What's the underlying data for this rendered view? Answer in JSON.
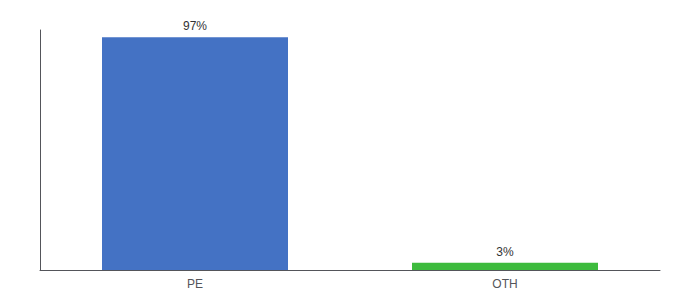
{
  "chart_data": {
    "type": "bar",
    "categories": [
      "PE",
      "OTH"
    ],
    "values": [
      97,
      3
    ],
    "colors": [
      "#4472c4",
      "#3dbb3d"
    ],
    "data_labels": true,
    "value_labels": [
      "97%",
      "3%"
    ],
    "ylim": [
      0,
      100
    ],
    "tick_labels": "x",
    "grid": false
  }
}
